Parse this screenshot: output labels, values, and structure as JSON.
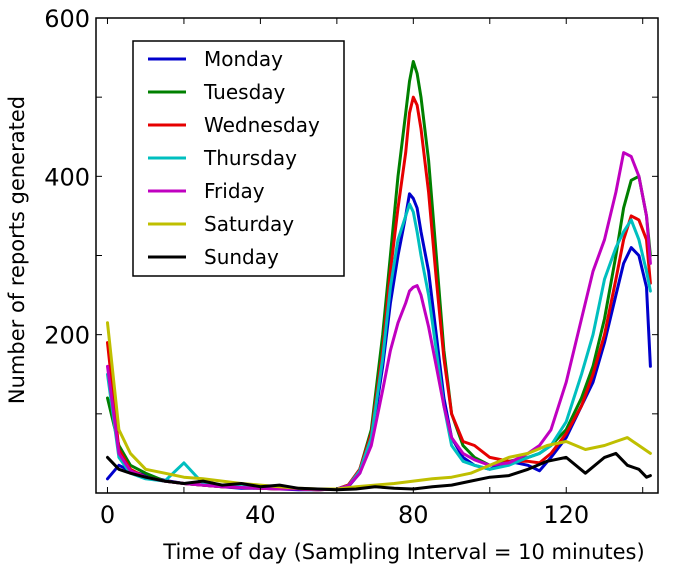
{
  "chart_data": {
    "type": "line",
    "title": "",
    "xlabel": "Time of day (Sampling Interval = 10 minutes)",
    "ylabel": "Number of reports generated",
    "xlim": [
      -3,
      144
    ],
    "ylim": [
      0,
      600
    ],
    "xticks": [
      0,
      40,
      80,
      120
    ],
    "yticks": [
      200,
      400,
      600
    ],
    "legend_position": "upper-left",
    "series": [
      {
        "name": "Monday",
        "color": "#0000cc",
        "x": [
          0,
          3,
          6,
          10,
          15,
          20,
          25,
          30,
          35,
          40,
          45,
          50,
          55,
          60,
          63,
          66,
          69,
          72,
          74,
          76,
          78,
          79,
          80,
          81,
          82,
          84,
          86,
          88,
          90,
          93,
          96,
          100,
          105,
          110,
          113,
          116,
          120,
          124,
          127,
          130,
          133,
          135,
          137,
          139,
          141,
          142
        ],
        "y": [
          18,
          35,
          28,
          22,
          16,
          12,
          10,
          8,
          6,
          6,
          5,
          4,
          4,
          5,
          8,
          25,
          65,
          160,
          240,
          300,
          350,
          378,
          372,
          360,
          330,
          280,
          200,
          120,
          70,
          45,
          35,
          30,
          40,
          35,
          28,
          45,
          70,
          110,
          140,
          190,
          250,
          290,
          310,
          300,
          260,
          160
        ]
      },
      {
        "name": "Tuesday",
        "color": "#008000",
        "x": [
          0,
          3,
          6,
          10,
          15,
          20,
          25,
          30,
          35,
          40,
          45,
          50,
          55,
          60,
          63,
          66,
          69,
          72,
          74,
          76,
          78,
          79,
          80,
          81,
          82,
          84,
          86,
          88,
          90,
          93,
          96,
          100,
          105,
          110,
          113,
          116,
          120,
          124,
          127,
          130,
          133,
          135,
          137,
          139,
          141,
          142
        ],
        "y": [
          120,
          60,
          35,
          25,
          15,
          12,
          10,
          8,
          7,
          6,
          5,
          5,
          4,
          5,
          10,
          30,
          80,
          200,
          300,
          400,
          480,
          520,
          545,
          530,
          500,
          420,
          300,
          180,
          100,
          60,
          45,
          35,
          40,
          45,
          50,
          60,
          80,
          120,
          160,
          220,
          300,
          360,
          395,
          400,
          350,
          300
        ]
      },
      {
        "name": "Wednesday",
        "color": "#e60000",
        "x": [
          0,
          3,
          6,
          10,
          15,
          20,
          25,
          30,
          35,
          40,
          45,
          50,
          55,
          60,
          63,
          66,
          69,
          72,
          74,
          76,
          78,
          79,
          80,
          81,
          82,
          84,
          86,
          88,
          90,
          93,
          96,
          100,
          105,
          110,
          113,
          116,
          120,
          124,
          127,
          130,
          133,
          135,
          137,
          139,
          141,
          142
        ],
        "y": [
          190,
          55,
          30,
          20,
          15,
          12,
          10,
          8,
          7,
          6,
          5,
          5,
          4,
          5,
          10,
          30,
          75,
          180,
          280,
          360,
          430,
          480,
          500,
          490,
          460,
          380,
          270,
          170,
          100,
          65,
          60,
          45,
          40,
          40,
          38,
          50,
          75,
          110,
          150,
          200,
          270,
          320,
          350,
          345,
          320,
          265
        ]
      },
      {
        "name": "Thursday",
        "color": "#00bfbf",
        "x": [
          0,
          3,
          6,
          10,
          15,
          20,
          25,
          30,
          35,
          40,
          45,
          50,
          55,
          60,
          63,
          66,
          69,
          72,
          74,
          76,
          78,
          79,
          80,
          81,
          82,
          84,
          86,
          88,
          90,
          93,
          96,
          100,
          105,
          110,
          113,
          116,
          120,
          124,
          127,
          130,
          133,
          135,
          137,
          139,
          141,
          142
        ],
        "y": [
          150,
          45,
          25,
          18,
          15,
          38,
          12,
          10,
          8,
          7,
          6,
          5,
          5,
          5,
          9,
          28,
          70,
          170,
          260,
          320,
          350,
          365,
          355,
          330,
          300,
          250,
          180,
          110,
          60,
          40,
          35,
          30,
          35,
          45,
          50,
          60,
          90,
          150,
          200,
          270,
          310,
          330,
          345,
          320,
          280,
          255
        ]
      },
      {
        "name": "Friday",
        "color": "#c000c0",
        "x": [
          0,
          3,
          6,
          10,
          15,
          20,
          25,
          30,
          35,
          40,
          45,
          50,
          55,
          60,
          63,
          66,
          69,
          72,
          74,
          76,
          78,
          79,
          80,
          81,
          82,
          84,
          86,
          88,
          90,
          93,
          96,
          100,
          105,
          110,
          113,
          116,
          120,
          124,
          127,
          130,
          133,
          135,
          137,
          139,
          141,
          142
        ],
        "y": [
          160,
          50,
          28,
          20,
          15,
          12,
          10,
          8,
          7,
          6,
          5,
          5,
          4,
          5,
          9,
          25,
          60,
          130,
          180,
          215,
          240,
          255,
          260,
          262,
          250,
          210,
          160,
          110,
          70,
          50,
          42,
          35,
          38,
          50,
          60,
          80,
          140,
          220,
          280,
          320,
          380,
          430,
          425,
          400,
          350,
          290
        ]
      },
      {
        "name": "Saturday",
        "color": "#bfbf00",
        "x": [
          0,
          3,
          6,
          10,
          15,
          20,
          25,
          30,
          35,
          40,
          45,
          50,
          55,
          60,
          65,
          70,
          75,
          80,
          85,
          90,
          95,
          100,
          105,
          110,
          115,
          120,
          125,
          130,
          133,
          136,
          139,
          142
        ],
        "y": [
          215,
          80,
          50,
          30,
          25,
          20,
          18,
          15,
          12,
          10,
          8,
          6,
          5,
          5,
          8,
          10,
          12,
          15,
          18,
          20,
          25,
          35,
          45,
          50,
          60,
          65,
          55,
          60,
          65,
          70,
          60,
          50
        ]
      },
      {
        "name": "Sunday",
        "color": "#000000",
        "x": [
          0,
          3,
          6,
          10,
          15,
          20,
          25,
          30,
          35,
          40,
          45,
          50,
          55,
          60,
          65,
          70,
          75,
          80,
          85,
          90,
          95,
          100,
          105,
          110,
          115,
          120,
          125,
          130,
          133,
          136,
          139,
          141,
          142
        ],
        "y": [
          45,
          30,
          25,
          20,
          15,
          12,
          15,
          10,
          12,
          8,
          10,
          6,
          5,
          4,
          5,
          8,
          6,
          5,
          8,
          10,
          15,
          20,
          22,
          30,
          40,
          45,
          25,
          45,
          50,
          35,
          30,
          20,
          22
        ]
      }
    ]
  }
}
